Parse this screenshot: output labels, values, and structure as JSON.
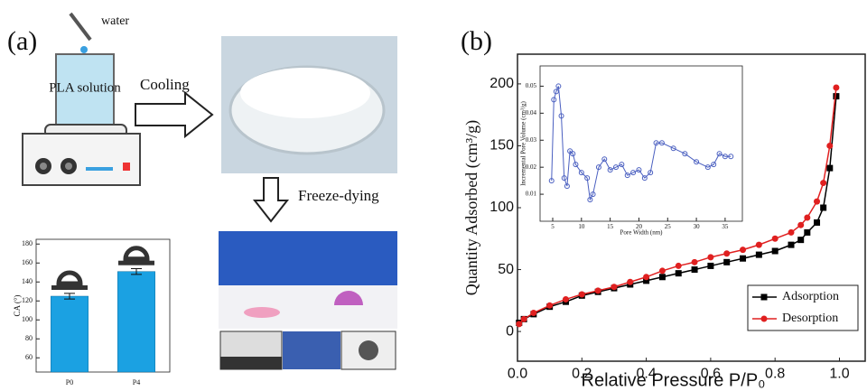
{
  "figure": {
    "panel_a": "(a)",
    "panel_b": "(b)",
    "water": "water",
    "beaker": "PLA solution",
    "cooling": "Cooling",
    "freeze": "Freeze-dying"
  },
  "chart_data": [
    {
      "type": "bar",
      "ylabel": "CA (°)",
      "categories": [
        "P0",
        "P4"
      ],
      "values": [
        125,
        151
      ],
      "errors": [
        3,
        3
      ],
      "color": "#1ba1e2",
      "ylim": [
        45,
        185
      ],
      "yticks": [
        60,
        80,
        100,
        120,
        140,
        160,
        180
      ]
    },
    {
      "type": "line",
      "xlabel": "Relative Pressure P/P₀",
      "ylabel": "Quantity Adsorbed (cm³/g)",
      "legend": "lower right",
      "x": [
        0.005,
        0.02,
        0.05,
        0.1,
        0.15,
        0.2,
        0.25,
        0.3,
        0.35,
        0.4,
        0.45,
        0.5,
        0.55,
        0.6,
        0.65,
        0.7,
        0.75,
        0.8,
        0.85,
        0.88,
        0.9,
        0.93,
        0.95,
        0.97,
        0.99
      ],
      "series": [
        {
          "name": "Adsorption",
          "color": "#000000",
          "marker": "square",
          "values": [
            7,
            10,
            14,
            20,
            24,
            29,
            32,
            35,
            38,
            41,
            44,
            47,
            50,
            53,
            56,
            59,
            62,
            65,
            70,
            74,
            80,
            88,
            100,
            132,
            190
          ]
        },
        {
          "name": "Desorption",
          "color": "#e02020",
          "marker": "circle",
          "values": [
            6,
            10,
            15,
            21,
            26,
            30,
            33,
            36,
            40,
            44,
            49,
            53,
            56,
            60,
            63,
            66,
            70,
            75,
            80,
            86,
            92,
            105,
            120,
            150,
            197
          ]
        }
      ],
      "xlim": [
        0,
        1.08
      ],
      "ylim": [
        -24,
        224
      ],
      "xticks": [
        {
          "value": 0,
          "label": "0.0"
        },
        0.2,
        0.4,
        0.6,
        0.8,
        {
          "value": 1,
          "label": "1.0"
        }
      ],
      "yticks": [
        0,
        50,
        100,
        150,
        200
      ]
    },
    {
      "type": "line",
      "xlabel": "Pore Width (nm)",
      "ylabel": "Incremental Pore Volume (cm³/g)",
      "x": [
        4.8,
        5.2,
        5.6,
        6,
        6.5,
        7,
        7.5,
        8,
        8.5,
        9,
        10,
        11,
        11.5,
        12,
        13,
        14,
        15,
        16,
        17,
        18,
        19,
        20,
        21,
        22,
        23,
        24,
        26,
        28,
        30,
        32,
        33,
        34,
        35,
        36
      ],
      "series": [
        {
          "color": "#4a5fc0",
          "marker": "open-circle",
          "values": [
            0.015,
            0.045,
            0.048,
            0.05,
            0.039,
            0.016,
            0.013,
            0.026,
            0.025,
            0.021,
            0.018,
            0.016,
            0.008,
            0.01,
            0.02,
            0.023,
            0.019,
            0.02,
            0.021,
            0.017,
            0.018,
            0.019,
            0.016,
            0.018,
            0.029,
            0.029,
            0.027,
            0.025,
            0.022,
            0.02,
            0.021,
            0.025,
            0.024,
            0.024
          ]
        }
      ],
      "xlim": [
        2.8,
        38
      ],
      "ylim": [
        0,
        0.0575
      ],
      "xticks": [
        5,
        10,
        15,
        20,
        25,
        30,
        35
      ],
      "yticks": [
        0.01,
        0.02,
        0.03,
        0.04,
        0.05
      ]
    }
  ]
}
